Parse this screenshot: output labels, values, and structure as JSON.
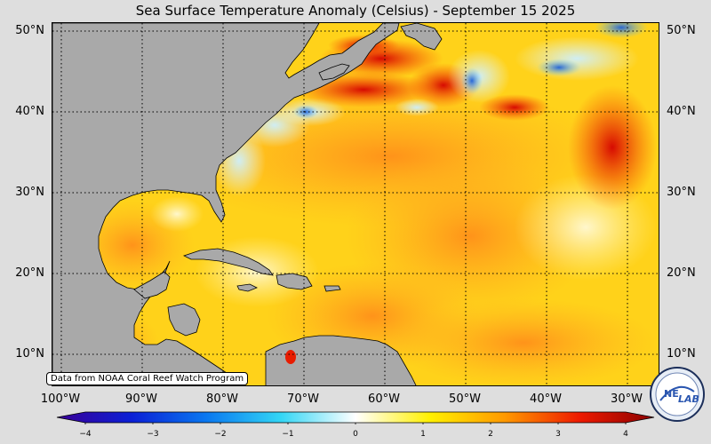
{
  "title": "Sea Surface Temperature Anomaly (Celsius) - September 15 2025",
  "lat_labels": [
    "50°N",
    "40°N",
    "30°N",
    "20°N",
    "10°N"
  ],
  "lon_labels": [
    "100°W",
    "90°W",
    "80°W",
    "70°W",
    "60°W",
    "50°W",
    "40°W",
    "30°W"
  ],
  "credit": "Data from NOAA Coral Reef Watch Program",
  "colorbar": {
    "ticks": [
      "−4",
      "−3",
      "−2",
      "−1",
      "0",
      "1",
      "2",
      "3",
      "4"
    ],
    "min": -4,
    "max": 4,
    "colors": [
      "#3a0096",
      "#0b1fd6",
      "#0a78f0",
      "#33d6f5",
      "#ffffff",
      "#fff000",
      "#ff9900",
      "#ee1a00",
      "#8a0000"
    ]
  },
  "logo": {
    "text_left": "NE",
    "text_right": "LAB"
  },
  "colors": {
    "land": "#a9a9a9",
    "ocean_base": "#ffd21a",
    "warm": "#ff8c1a",
    "hot": "#e81c00",
    "cool": "#dff6ff",
    "cold": "#1e60d8"
  }
}
